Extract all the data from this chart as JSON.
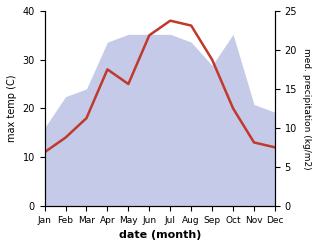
{
  "months": [
    "Jan",
    "Feb",
    "Mar",
    "Apr",
    "May",
    "Jun",
    "Jul",
    "Aug",
    "Sep",
    "Oct",
    "Nov",
    "Dec"
  ],
  "max_temp": [
    11,
    14,
    18,
    28,
    25,
    35,
    38,
    37,
    30,
    20,
    13,
    12
  ],
  "precipitation": [
    10,
    14,
    15,
    21,
    22,
    22,
    22,
    21,
    18,
    22,
    13,
    12
  ],
  "temp_ylim": [
    0,
    40
  ],
  "precip_ylim": [
    0,
    25
  ],
  "temp_color": "#c0392b",
  "precip_color_fill": "#c5cae9",
  "xlabel": "date (month)",
  "ylabel_left": "max temp (C)",
  "ylabel_right": "med. precipitation (kg/m2)",
  "background_color": "#ffffff",
  "temp_linewidth": 1.8
}
